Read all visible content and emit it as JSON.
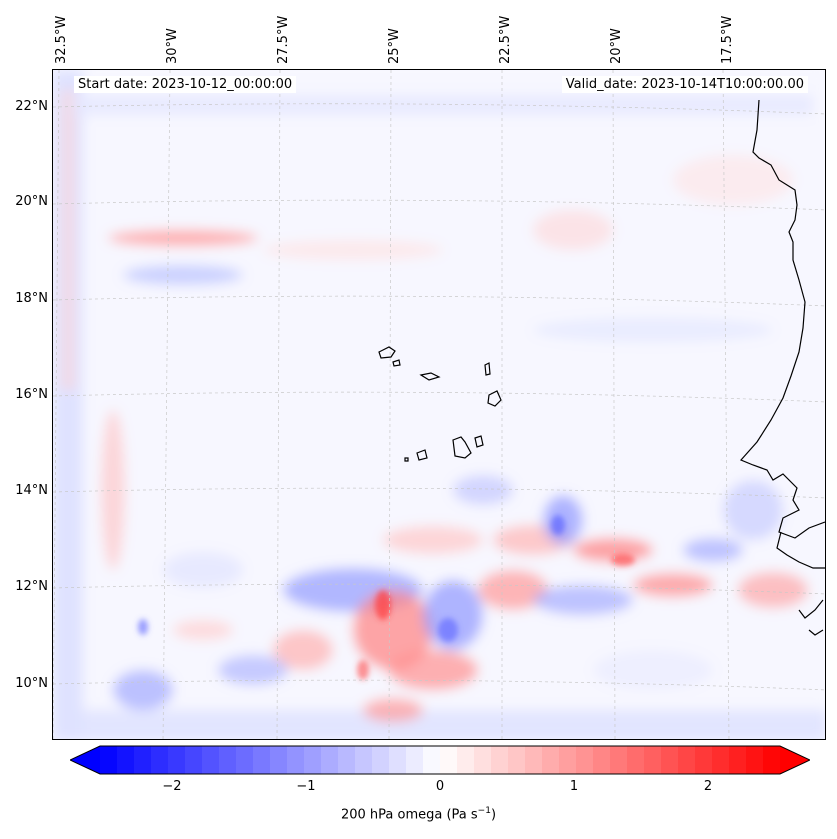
{
  "map": {
    "start_label": "Start date: 2023-10-12_00:00:00",
    "valid_label": "Valid_date: 2023-10-14T10:00:00.00",
    "lon_labels": [
      "32.5°W",
      "30°W",
      "27.5°W",
      "25°W",
      "22.5°W",
      "20°W",
      "17.5°W"
    ],
    "lat_labels": [
      "22°N",
      "20°N",
      "18°N",
      "16°N",
      "14°N",
      "12°N",
      "10°N"
    ],
    "field": "200 hPa omega",
    "colors": {
      "negative": "#0000ff",
      "neutral": "#ffffff",
      "positive": "#ff0000",
      "coastline": "#000000",
      "grid": "#c0c0c0"
    }
  },
  "colorbar": {
    "label_text": "200 hPa omega (Pa s",
    "label_sup": "−1",
    "label_close": ")",
    "ticks": [
      "−2",
      "−1",
      "0",
      "1",
      "2"
    ],
    "min": -2.5,
    "max": 2.5,
    "levels": 40
  }
}
